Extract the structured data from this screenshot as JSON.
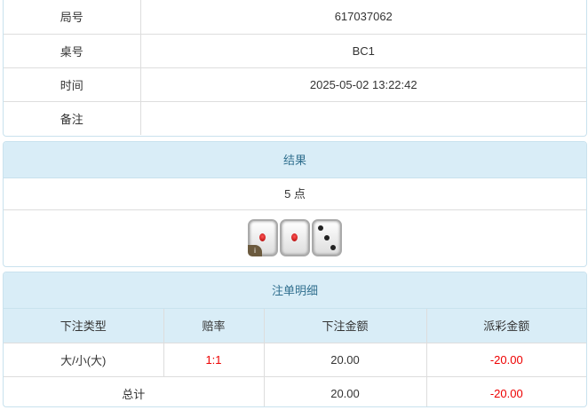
{
  "info": {
    "rows": [
      {
        "label": "局号",
        "value": "617037062"
      },
      {
        "label": "桌号",
        "value": "BC1"
      },
      {
        "label": "时间",
        "value": "2025-05-02 13:22:42"
      },
      {
        "label": "备注",
        "value": ""
      }
    ]
  },
  "result": {
    "title": "结果",
    "points": "5 点",
    "dice": [
      1,
      1,
      3
    ],
    "info_badge": "i"
  },
  "bets": {
    "title": "注单明细",
    "columns": [
      "下注类型",
      "赔率",
      "下注金额",
      "派彩金额"
    ],
    "rows": [
      {
        "type": "大/小(大)",
        "odds": "1:1",
        "amount": "20.00",
        "payout": "-20.00"
      }
    ],
    "total": {
      "label": "总计",
      "amount": "20.00",
      "payout": "-20.00"
    },
    "colors": {
      "negative": "#ee0000",
      "header_bg": "#d9edf7"
    }
  }
}
